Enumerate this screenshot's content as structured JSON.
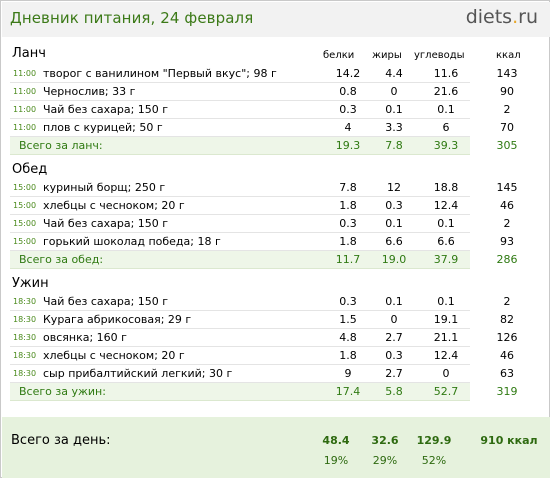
{
  "header": {
    "title": "Дневник питания, 24 февраля",
    "logo_main": "diets",
    "logo_dot": ".",
    "logo_tld": "ru"
  },
  "columns": {
    "protein": "белки",
    "fat": "жиры",
    "carbs": "углеводы",
    "kcal": "ккал"
  },
  "meals": [
    {
      "title": "Ланч",
      "items": [
        {
          "time": "11:00",
          "food": "творог с ванилином \"Первый вкус\"; 98 г",
          "protein": "14.2",
          "fat": "4.4",
          "carbs": "11.6",
          "kcal": "143"
        },
        {
          "time": "11:00",
          "food": "Чернослив; 33 г",
          "protein": "0.8",
          "fat": "0",
          "carbs": "21.6",
          "kcal": "90"
        },
        {
          "time": "11:00",
          "food": "Чай без сахара; 150 г",
          "protein": "0.3",
          "fat": "0.1",
          "carbs": "0.1",
          "kcal": "2"
        },
        {
          "time": "11:00",
          "food": "плов с курицей; 50 г",
          "protein": "4",
          "fat": "3.3",
          "carbs": "6",
          "kcal": "70"
        }
      ],
      "total": {
        "label": "Всего за ланч:",
        "protein": "19.3",
        "fat": "7.8",
        "carbs": "39.3",
        "kcal": "305"
      }
    },
    {
      "title": "Обед",
      "items": [
        {
          "time": "15:00",
          "food": "куриный борщ; 250 г",
          "protein": "7.8",
          "fat": "12",
          "carbs": "18.8",
          "kcal": "145"
        },
        {
          "time": "15:00",
          "food": "хлебцы с чесноком; 20 г",
          "protein": "1.8",
          "fat": "0.3",
          "carbs": "12.4",
          "kcal": "46"
        },
        {
          "time": "15:00",
          "food": "Чай без сахара; 150 г",
          "protein": "0.3",
          "fat": "0.1",
          "carbs": "0.1",
          "kcal": "2"
        },
        {
          "time": "15:00",
          "food": "горький шоколад победа; 18 г",
          "protein": "1.8",
          "fat": "6.6",
          "carbs": "6.6",
          "kcal": "93"
        }
      ],
      "total": {
        "label": "Всего за обед:",
        "protein": "11.7",
        "fat": "19.0",
        "carbs": "37.9",
        "kcal": "286"
      }
    },
    {
      "title": "Ужин",
      "items": [
        {
          "time": "18:30",
          "food": "Чай без сахара; 150 г",
          "protein": "0.3",
          "fat": "0.1",
          "carbs": "0.1",
          "kcal": "2"
        },
        {
          "time": "18:30",
          "food": "Курага абрикосовая; 29 г",
          "protein": "1.5",
          "fat": "0",
          "carbs": "19.1",
          "kcal": "82"
        },
        {
          "time": "18:30",
          "food": "овсянка; 160 г",
          "protein": "4.8",
          "fat": "2.7",
          "carbs": "21.1",
          "kcal": "126"
        },
        {
          "time": "18:30",
          "food": "хлебцы с чесноком; 20 г",
          "protein": "1.8",
          "fat": "0.3",
          "carbs": "12.4",
          "kcal": "46"
        },
        {
          "time": "18:30",
          "food": "сыр прибалтийский легкий; 30 г",
          "protein": "9",
          "fat": "2.7",
          "carbs": "0",
          "kcal": "63"
        }
      ],
      "total": {
        "label": "Всего за ужин:",
        "protein": "17.4",
        "fat": "5.8",
        "carbs": "52.7",
        "kcal": "319"
      }
    }
  ],
  "day_total": {
    "label": "Всего за день:",
    "protein": "48.4",
    "fat": "32.6",
    "carbs": "129.9",
    "kcal": "910 ккал",
    "protein_pct": "19%",
    "fat_pct": "29%",
    "carbs_pct": "52%"
  }
}
